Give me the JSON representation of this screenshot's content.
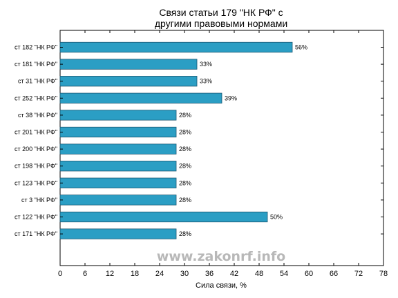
{
  "chart_data": {
    "type": "bar",
    "orientation": "horizontal",
    "title": [
      "Связи статьи 179 \"НК РФ\" с",
      "другими правовыми нормами"
    ],
    "xlabel": "Сила связи, %",
    "xlim": [
      0,
      78
    ],
    "xticks": [
      "0",
      "6",
      "12",
      "18",
      "24",
      "30",
      "36",
      "42",
      "48",
      "54",
      "60",
      "66",
      "72",
      "78"
    ],
    "categories": [
      "ст 182 \"НК РФ\"",
      "ст 181 \"НК РФ\"",
      "ст 31 \"НК РФ\"",
      "ст 252 \"НК РФ\"",
      "ст 38 \"НК РФ\"",
      "ст 201 \"НК РФ\"",
      "ст 200 \"НК РФ\"",
      "ст 198 \"НК РФ\"",
      "ст 123 \"НК РФ\"",
      "ст 3 \"НК РФ\"",
      "ст 122 \"НК РФ\"",
      "ст 171 \"НК РФ\""
    ],
    "values": [
      56,
      33,
      33,
      39,
      28,
      28,
      28,
      28,
      28,
      28,
      50,
      28
    ],
    "value_labels": [
      "56%",
      "33%",
      "33%",
      "39%",
      "28%",
      "28%",
      "28%",
      "28%",
      "28%",
      "28%",
      "50%",
      "28%"
    ],
    "bar_color": "#2b9ec4",
    "grid": false,
    "watermark": "www.zakonrf.info"
  }
}
